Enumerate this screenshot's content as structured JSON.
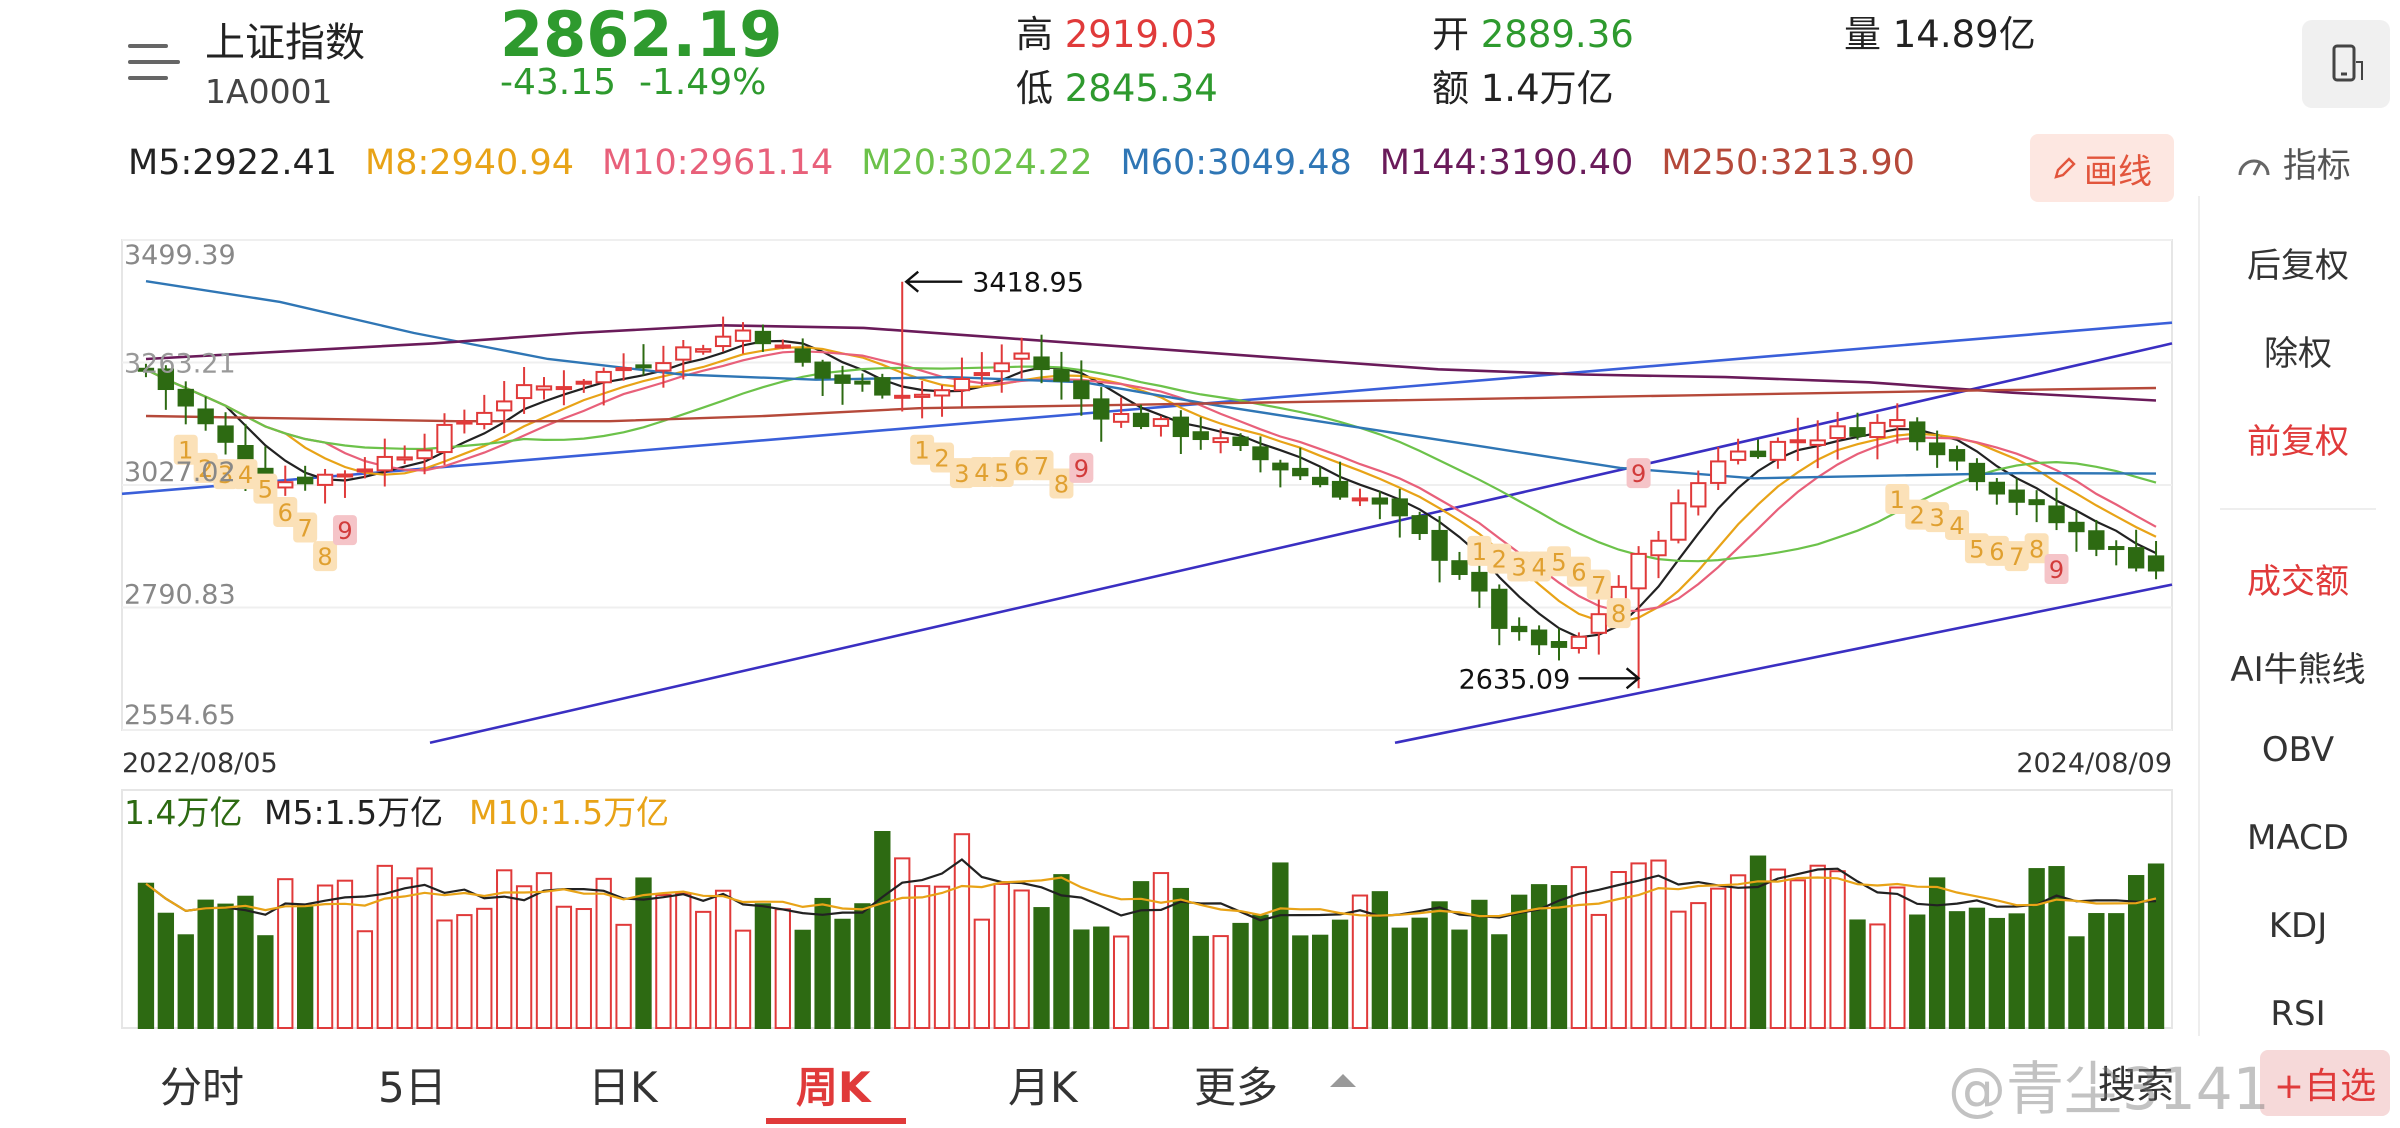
{
  "header": {
    "name": "上证指数",
    "code": "1A0001",
    "price": "2862.19",
    "change": "-43.15",
    "change_pct": "-1.49%",
    "high_label": "高",
    "high": "2919.03",
    "low_label": "低",
    "low": "2845.34",
    "open_label": "开",
    "open": "2889.36",
    "amount_label": "额",
    "amount": "1.4万亿",
    "volume_label": "量",
    "volume": "14.89亿"
  },
  "ma_row": [
    {
      "label": "M5:2922.41",
      "color": "#222222"
    },
    {
      "label": "M8:2940.94",
      "color": "#e8a317"
    },
    {
      "label": "M10:2961.14",
      "color": "#e8607a"
    },
    {
      "label": "M20:3024.22",
      "color": "#6cc24a"
    },
    {
      "label": "M60:3049.48",
      "color": "#2f76b5"
    },
    {
      "label": "M144:3190.40",
      "color": "#6a1b5a"
    },
    {
      "label": "M250:3213.90",
      "color": "#b5493a"
    }
  ],
  "draw_button": "画线",
  "indicator_header": "指标",
  "right_panel": [
    "后复权",
    "除权",
    "前复权",
    "成交额",
    "AI牛熊线",
    "OBV",
    "MACD",
    "KDJ",
    "RSI"
  ],
  "chart_data": [
    {
      "type": "candlestick",
      "y_ticks": [
        "3499.39",
        "3027.02",
        "2790.83",
        "2554.65"
      ],
      "partial_tick": "3263.21",
      "ylim": [
        2554.65,
        3499.39
      ],
      "x_labels": [
        "2022/08/05",
        "2024/08/09"
      ],
      "annotations": [
        "3418.95",
        "2635.09"
      ],
      "td_counts": [
        "1",
        "2",
        "3",
        "4",
        "5",
        "6",
        "7",
        "8",
        "9"
      ],
      "colors": {
        "up": "#e03a3a",
        "down": "#2d6a12"
      }
    },
    {
      "type": "bar",
      "labels": [
        "1.4万亿",
        "M5:1.5万亿",
        "M10:1.5万亿"
      ],
      "colors": {
        "last": "#2d6a12",
        "m5": "#222222",
        "m10": "#e8a317"
      }
    }
  ],
  "tabs": [
    "分时",
    "5日",
    "日K",
    "周K",
    "月K",
    "更多"
  ],
  "active_tab": "周K",
  "search_label": "搜索",
  "add_label": "+自选",
  "watermark": "@青尘3141"
}
